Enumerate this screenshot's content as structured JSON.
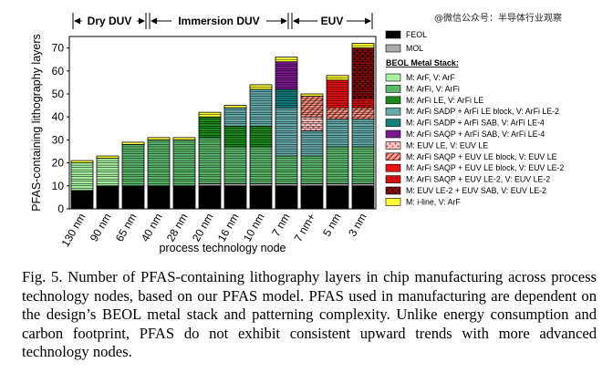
{
  "watermark": "@微信公众号：半导体行业观察",
  "caption": "Fig. 5.  Number of PFAS-containing lithography layers in chip manufacturing across process technology nodes, based on our PFAS model. PFAS used in manufacturing are dependent on the design’s BEOL metal stack and patterning complexity. Unlike energy consumption and carbon footprint, PFAS do not exhibit consistent upward trends with more advanced technology nodes.",
  "chart_data": {
    "type": "bar",
    "stacked": true,
    "xlabel": "process technology node",
    "ylabel": "PFAS-containing lithography layers",
    "ylim": [
      0,
      75
    ],
    "yticks": [
      0,
      10,
      20,
      30,
      40,
      50,
      60,
      70
    ],
    "categories": [
      "130 nm",
      "90 nm",
      "65 nm",
      "40 nm",
      "28 nm",
      "20 nm",
      "16 nm",
      "10 nm",
      "7 nm",
      "7 nm+",
      "5 nm",
      "3 nm"
    ],
    "groups": [
      {
        "label": "Dry DUV",
        "from": 0,
        "to": 2
      },
      {
        "label": "Immersion DUV",
        "from": 3,
        "to": 8
      },
      {
        "label": "EUV",
        "from": 9,
        "to": 11
      }
    ],
    "legend_heading": "BEOL Metal Stack:",
    "series": [
      {
        "name": "FEOL",
        "color": "#000000",
        "values": [
          8,
          10,
          10,
          10,
          10,
          10,
          10,
          10,
          10,
          10,
          10,
          10
        ]
      },
      {
        "name": "MOL",
        "color": "#aaaaaa",
        "values": [
          0,
          0,
          0,
          0,
          0,
          1,
          1,
          1,
          1,
          1,
          1,
          1
        ]
      },
      {
        "name": "M: ArF, V: ArF",
        "color": "#a6f0a0",
        "values": [
          12,
          12,
          0,
          0,
          0,
          0,
          0,
          0,
          0,
          0,
          0,
          0
        ]
      },
      {
        "name": "M: ArFi, V: ArFi",
        "color": "#5bb76b",
        "values": [
          0,
          0,
          18,
          20,
          20,
          20,
          16,
          16,
          12,
          12,
          16,
          16
        ]
      },
      {
        "name": "M: ArFi LE, V: ArFi LE",
        "color": "#1e8a1e",
        "values": [
          0,
          0,
          0,
          0,
          0,
          9,
          9,
          9,
          0,
          0,
          0,
          0
        ]
      },
      {
        "name": "M: ArFi SADP + ArFi LE block, V: ArFi LE-2",
        "color": "#66aaaa",
        "values": [
          0,
          0,
          0,
          0,
          0,
          0,
          8,
          16,
          21,
          11,
          12,
          12
        ]
      },
      {
        "name": "M: ArFi SADP + ArFi SAB, V: ArFi LE-4",
        "color": "#137f7f",
        "values": [
          0,
          0,
          0,
          0,
          0,
          0,
          0,
          0,
          8,
          0,
          0,
          0
        ]
      },
      {
        "name": "M: ArFi SAQP + ArFi SAB, V: ArFi LE-4",
        "color": "#7b1a8f",
        "values": [
          0,
          0,
          0,
          0,
          0,
          0,
          0,
          0,
          12,
          0,
          0,
          0
        ]
      },
      {
        "name": "M: EUV LE, V: EUV LE",
        "color": "#f4b7b7",
        "values": [
          0,
          0,
          0,
          0,
          0,
          0,
          0,
          0,
          0,
          6,
          0,
          0
        ]
      },
      {
        "name": "M: ArFi SAQP + EUV LE block, V: EUV LE",
        "color": "#e97a6a",
        "values": [
          0,
          0,
          0,
          0,
          0,
          0,
          0,
          0,
          0,
          9,
          5,
          5
        ]
      },
      {
        "name": "M: ArFi SAQP + EUV LE block, V: EUV LE-2",
        "color": "#ea1313",
        "values": [
          0,
          0,
          0,
          0,
          0,
          0,
          0,
          0,
          0,
          0,
          12,
          0
        ]
      },
      {
        "name": "M: ArFi SAQP + EUV LE-2, V: EUV LE-2",
        "color": "#b01010",
        "values": [
          0,
          0,
          0,
          0,
          0,
          0,
          0,
          0,
          0,
          0,
          0,
          4
        ]
      },
      {
        "name": "M: EUV LE-2 + EUV SAB, V: EUV LE-2",
        "color": "#8b0b0b",
        "values": [
          0,
          0,
          0,
          0,
          0,
          0,
          0,
          0,
          0,
          0,
          0,
          22
        ]
      },
      {
        "name": "M: i-line, V: ArF",
        "color": "#ffff33",
        "values": [
          1,
          1,
          1,
          1,
          1,
          2,
          1,
          2,
          2,
          1,
          2,
          2
        ]
      }
    ]
  }
}
